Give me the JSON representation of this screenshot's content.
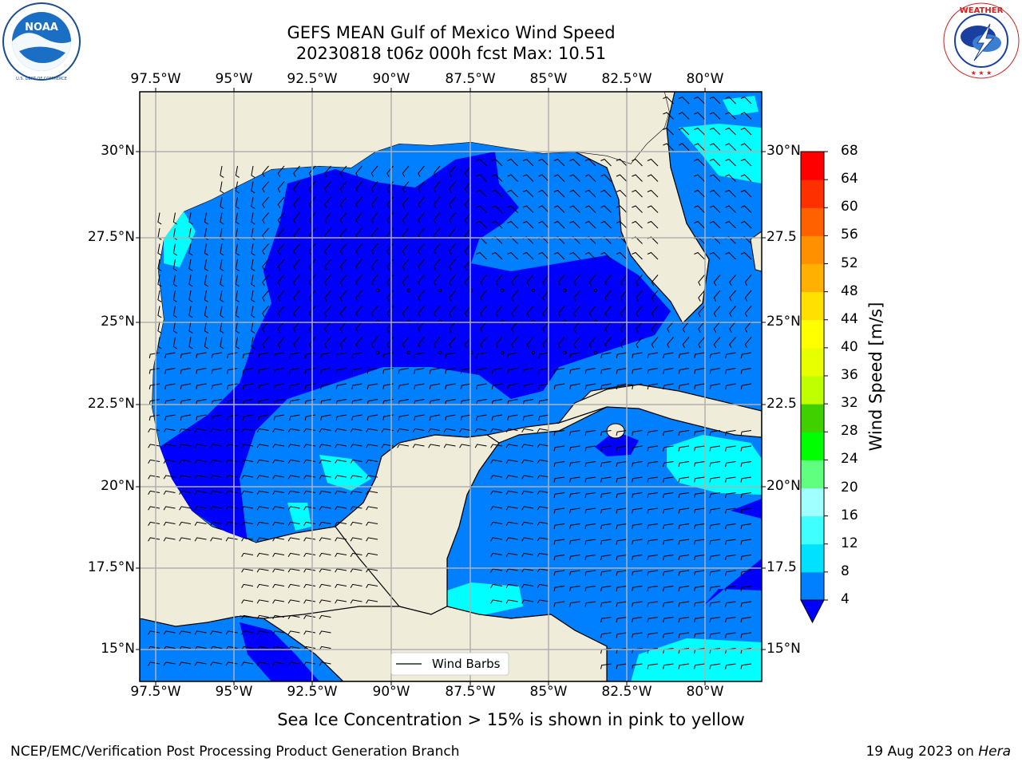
{
  "title_line1": "GEFS MEAN Gulf of Mexico Wind Speed",
  "title_line2": "20230818 t06z 000h fcst   Max: 10.51",
  "lon_labels": [
    "97.5°W",
    "95°W",
    "92.5°W",
    "90°W",
    "87.5°W",
    "85°W",
    "82.5°W",
    "80°W"
  ],
  "lat_labels": [
    "30°N",
    "27.5°N",
    "25°N",
    "22.5°N",
    "20°N",
    "17.5°N",
    "15°N"
  ],
  "lat_labels_right": [
    "30°N",
    "27.5",
    "25°N",
    "22.5",
    "20°N",
    "17.5",
    "15°N"
  ],
  "colorbar": {
    "title": "Wind Speed [m/s]",
    "ticks": [
      "68",
      "64",
      "60",
      "56",
      "52",
      "48",
      "44",
      "40",
      "36",
      "32",
      "28",
      "24",
      "20",
      "16",
      "12",
      "8",
      "4"
    ],
    "colors": [
      "#0000ff",
      "#0080ff",
      "#00e0ff",
      "#40ffff",
      "#a0ffff",
      "#60ff80",
      "#00ff00",
      "#40d000",
      "#c0ff00",
      "#e8ff00",
      "#ffff00",
      "#ffe000",
      "#ffb000",
      "#ff9000",
      "#ff6000",
      "#ff3000",
      "#ff0000"
    ]
  },
  "legend_label": "Wind Barbs",
  "bottom_note": "Sea Ice Concentration > 15% is shown in pink to yellow",
  "footer_left": "NCEP/EMC/Verification Post Processing Product Generation Branch",
  "footer_right_date": "19 Aug 2023 on ",
  "footer_right_host": "Hera",
  "logos": {
    "noaa_text": "NOAA",
    "noaa_ring": "NATIONAL OCEANIC AND ATMOSPHERIC ADMINISTRATION",
    "noaa_ring_bottom": "U.S. DEPARTMENT OF COMMERCE",
    "nws_ring": "NATIONAL WEATHER SERVICE"
  },
  "colors": {
    "land": "#efedda",
    "ocean_4_8": "#0080ff",
    "ocean_lt4": "#0000ff",
    "ocean_8_12": "#00ffff",
    "grid": "#b0b0b0"
  }
}
